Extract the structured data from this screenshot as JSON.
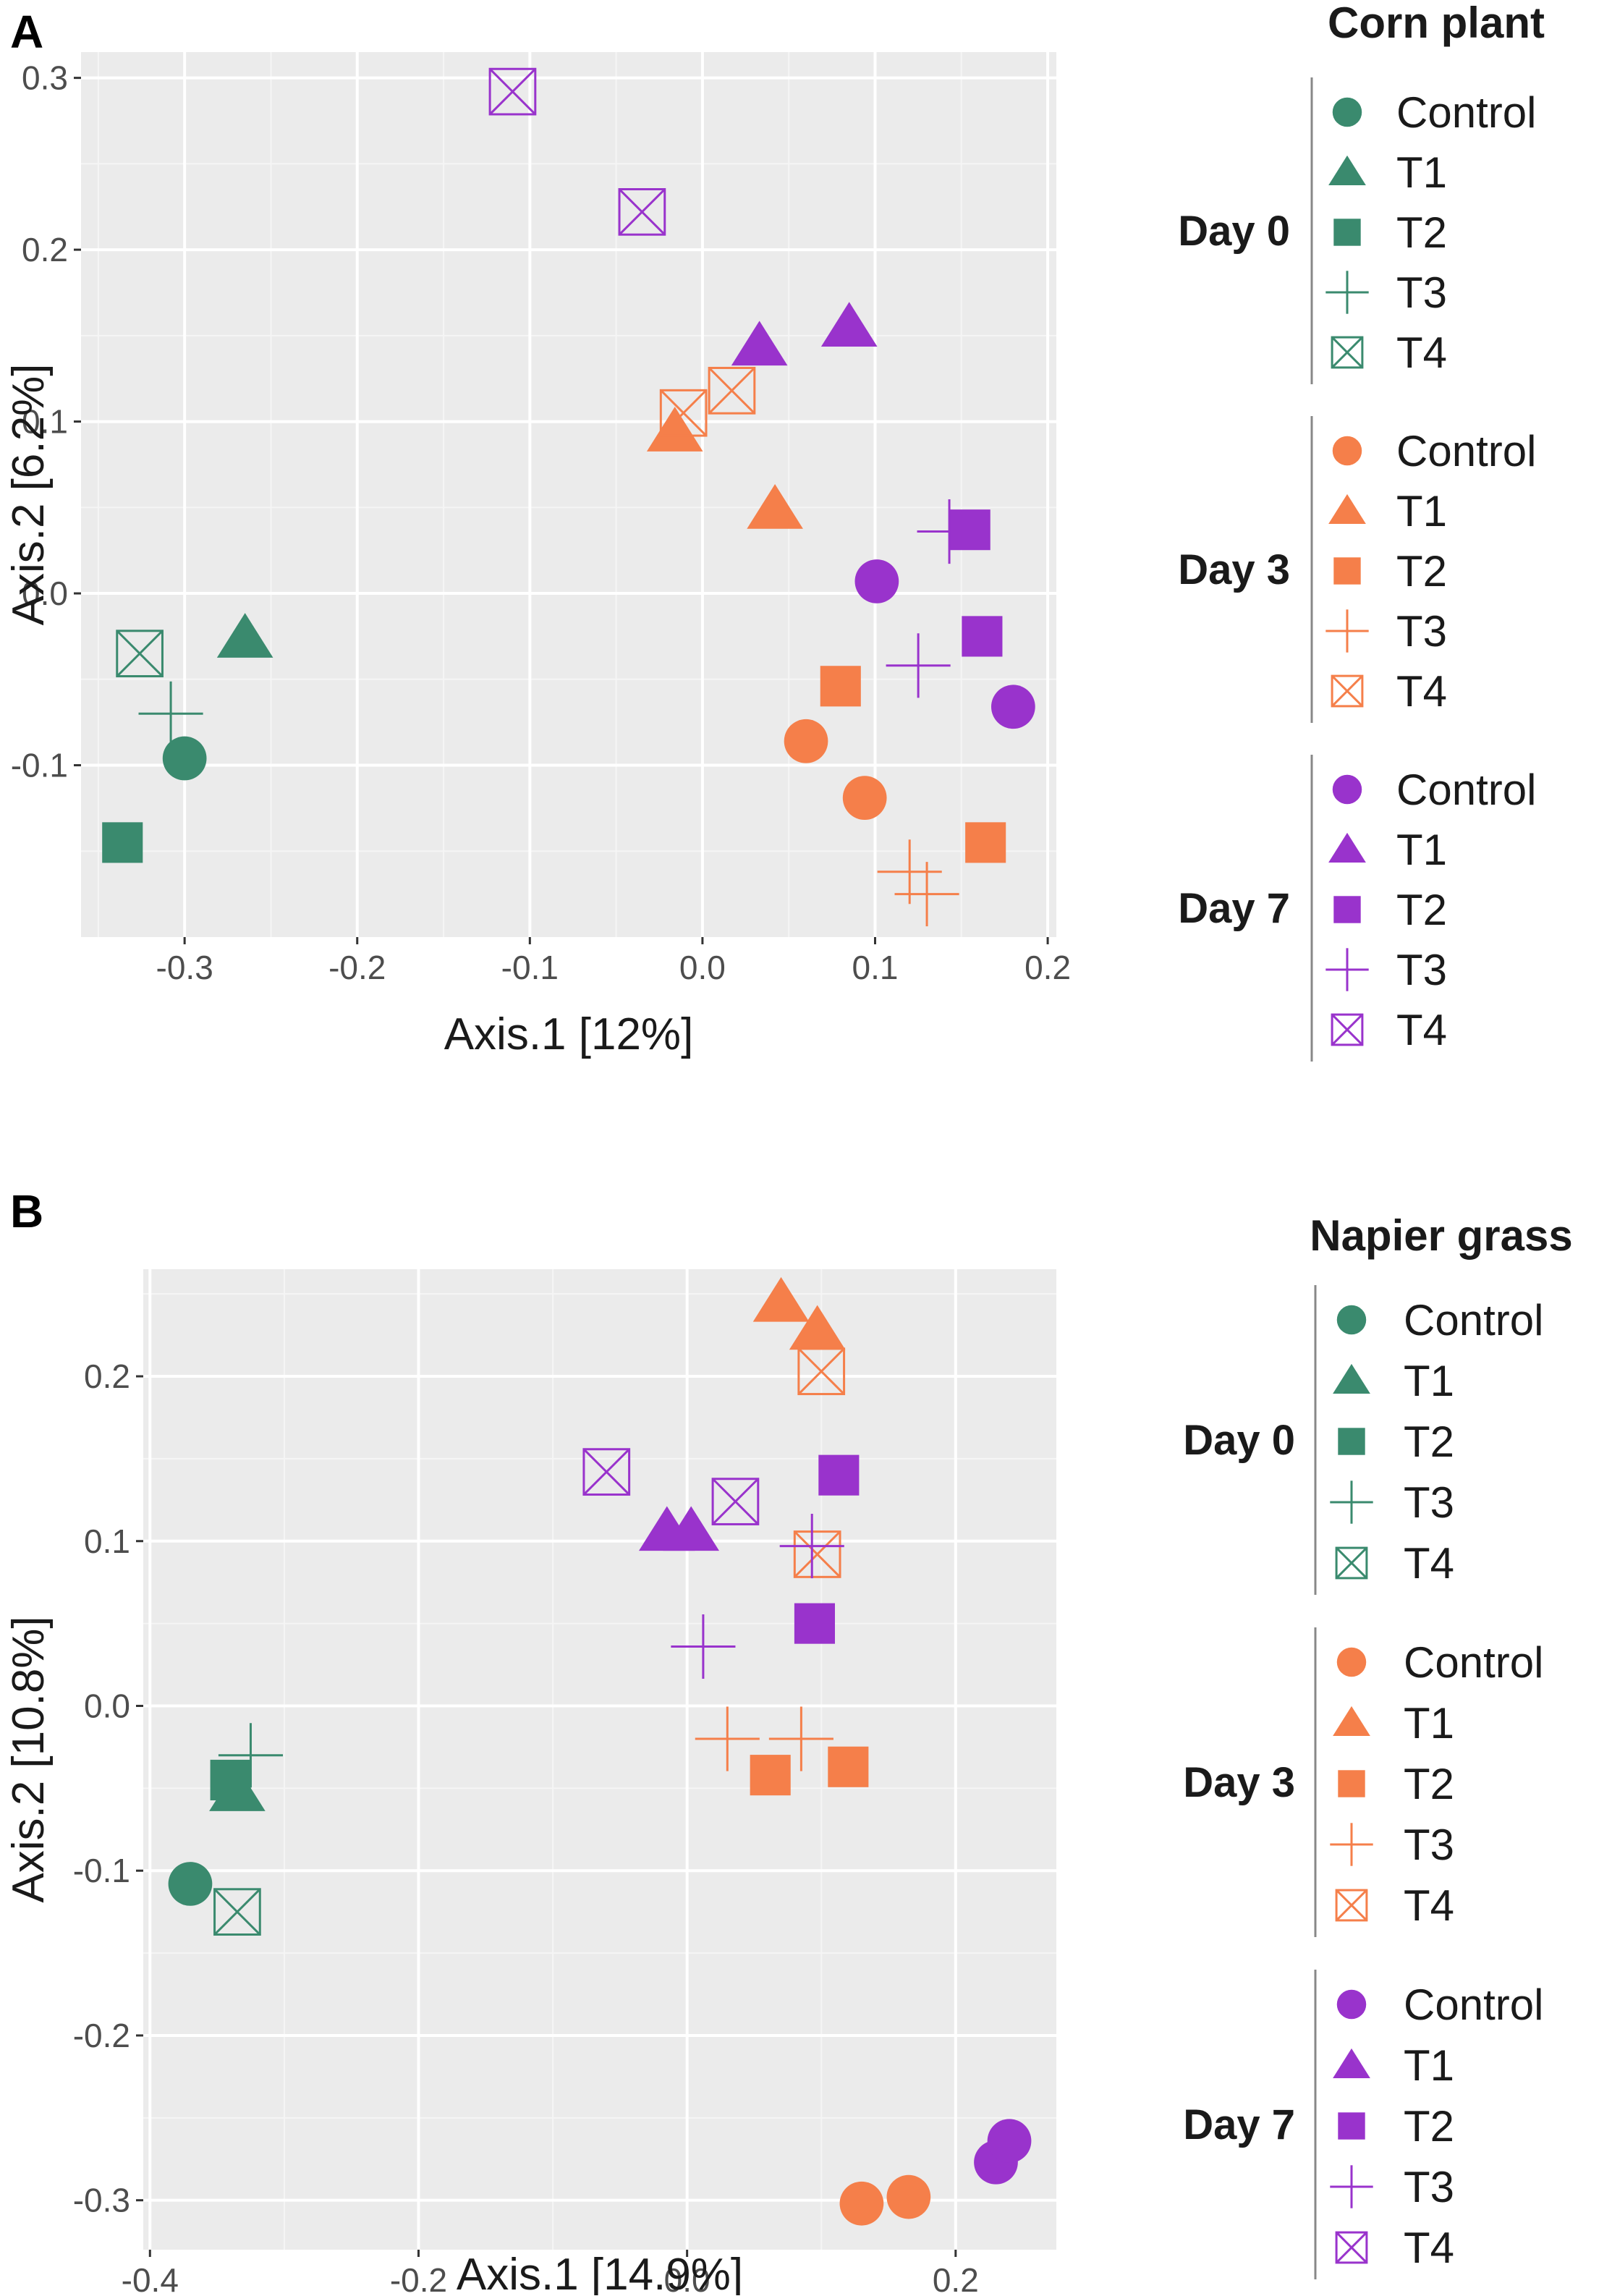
{
  "colors": {
    "Day 0": "#3a8a6e",
    "Day 3": "#f57f4a",
    "Day 7": "#9933cc",
    "panel_bg": "#ebebeb",
    "grid": "#ffffff"
  },
  "chart_data": [
    {
      "type": "scatter",
      "panel": "A",
      "legend_title": "Corn plant",
      "xlabel": "Axis.1   [12%]",
      "ylabel": "Axis.2   [6.2%]",
      "xlim": [
        -0.36,
        0.205
      ],
      "ylim": [
        -0.2,
        0.315
      ],
      "xticks": [
        -0.3,
        -0.2,
        -0.1,
        0.0,
        0.1,
        0.2
      ],
      "xtick_labels": [
        "-0.3",
        "-0.2",
        "-0.1",
        "0.0",
        "0.1",
        "0.2"
      ],
      "yticks": [
        -0.1,
        0.0,
        0.1,
        0.2,
        0.3
      ],
      "ytick_labels": [
        "-0.1",
        "0.0",
        "0.1",
        "0.2",
        "0.3"
      ],
      "legend_groups": [
        {
          "group": "Day 0",
          "entries": [
            {
              "shape": "circle",
              "label": "Control"
            },
            {
              "shape": "triangle",
              "label": "T1"
            },
            {
              "shape": "square",
              "label": "T2"
            },
            {
              "shape": "plus",
              "label": "T3"
            },
            {
              "shape": "boxx",
              "label": "T4"
            }
          ]
        },
        {
          "group": "Day 3",
          "entries": [
            {
              "shape": "circle",
              "label": "Control"
            },
            {
              "shape": "triangle",
              "label": "T1"
            },
            {
              "shape": "square",
              "label": "T2"
            },
            {
              "shape": "plus",
              "label": "T3"
            },
            {
              "shape": "boxx",
              "label": "T4"
            }
          ]
        },
        {
          "group": "Day 7",
          "entries": [
            {
              "shape": "circle",
              "label": "Control"
            },
            {
              "shape": "triangle",
              "label": "T1"
            },
            {
              "shape": "square",
              "label": "T2"
            },
            {
              "shape": "plus",
              "label": "T3"
            },
            {
              "shape": "boxx",
              "label": "T4"
            }
          ]
        }
      ],
      "series": [
        {
          "name": "Day 0",
          "points": [
            {
              "x": -0.3,
              "y": -0.096,
              "shape": "circle"
            },
            {
              "x": -0.265,
              "y": -0.026,
              "shape": "triangle"
            },
            {
              "x": -0.336,
              "y": -0.145,
              "shape": "square"
            },
            {
              "x": -0.308,
              "y": -0.07,
              "shape": "plus"
            },
            {
              "x": -0.326,
              "y": -0.035,
              "shape": "boxx"
            }
          ]
        },
        {
          "name": "Day 3",
          "points": [
            {
              "x": 0.06,
              "y": -0.086,
              "shape": "circle"
            },
            {
              "x": 0.094,
              "y": -0.119,
              "shape": "circle"
            },
            {
              "x": -0.016,
              "y": 0.094,
              "shape": "triangle"
            },
            {
              "x": 0.042,
              "y": 0.049,
              "shape": "triangle"
            },
            {
              "x": 0.08,
              "y": -0.054,
              "shape": "square"
            },
            {
              "x": 0.164,
              "y": -0.145,
              "shape": "square"
            },
            {
              "x": 0.12,
              "y": -0.162,
              "shape": "plus"
            },
            {
              "x": 0.13,
              "y": -0.175,
              "shape": "plus"
            },
            {
              "x": -0.011,
              "y": 0.105,
              "shape": "boxx"
            },
            {
              "x": 0.017,
              "y": 0.118,
              "shape": "boxx"
            }
          ]
        },
        {
          "name": "Day 7",
          "points": [
            {
              "x": 0.101,
              "y": 0.007,
              "shape": "circle"
            },
            {
              "x": 0.18,
              "y": -0.066,
              "shape": "circle"
            },
            {
              "x": 0.033,
              "y": 0.144,
              "shape": "triangle"
            },
            {
              "x": 0.085,
              "y": 0.155,
              "shape": "triangle"
            },
            {
              "x": 0.155,
              "y": 0.037,
              "shape": "square"
            },
            {
              "x": 0.162,
              "y": -0.025,
              "shape": "square"
            },
            {
              "x": 0.143,
              "y": 0.036,
              "shape": "plus"
            },
            {
              "x": 0.125,
              "y": -0.042,
              "shape": "plus"
            },
            {
              "x": -0.11,
              "y": 0.292,
              "shape": "boxx"
            },
            {
              "x": -0.035,
              "y": 0.222,
              "shape": "boxx"
            }
          ]
        }
      ]
    },
    {
      "type": "scatter",
      "panel": "B",
      "legend_title": "Napier grass",
      "xlabel": "Axis.1   [14.9%]",
      "ylabel": "Axis.2   [10.8%]",
      "xlim": [
        -0.405,
        0.275
      ],
      "ylim": [
        -0.33,
        0.265
      ],
      "xticks": [
        -0.4,
        -0.2,
        0.0,
        0.2
      ],
      "xtick_labels": [
        "-0.4",
        "-0.2",
        "0.0",
        "0.2"
      ],
      "yticks": [
        -0.3,
        -0.2,
        -0.1,
        0.0,
        0.1,
        0.2
      ],
      "ytick_labels": [
        "-0.3",
        "-0.2",
        "-0.1",
        "0.0",
        "0.1",
        "0.2"
      ],
      "legend_groups": [
        {
          "group": "Day 0",
          "entries": [
            {
              "shape": "circle",
              "label": "Control"
            },
            {
              "shape": "triangle",
              "label": "T1"
            },
            {
              "shape": "square",
              "label": "T2"
            },
            {
              "shape": "plus",
              "label": "T3"
            },
            {
              "shape": "boxx",
              "label": "T4"
            }
          ]
        },
        {
          "group": "Day 3",
          "entries": [
            {
              "shape": "circle",
              "label": "Control"
            },
            {
              "shape": "triangle",
              "label": "T1"
            },
            {
              "shape": "square",
              "label": "T2"
            },
            {
              "shape": "plus",
              "label": "T3"
            },
            {
              "shape": "boxx",
              "label": "T4"
            }
          ]
        },
        {
          "group": "Day 7",
          "entries": [
            {
              "shape": "circle",
              "label": "Control"
            },
            {
              "shape": "triangle",
              "label": "T1"
            },
            {
              "shape": "square",
              "label": "T2"
            },
            {
              "shape": "plus",
              "label": "T3"
            },
            {
              "shape": "boxx",
              "label": "T4"
            }
          ]
        }
      ],
      "series": [
        {
          "name": "Day 0",
          "points": [
            {
              "x": -0.37,
              "y": -0.108,
              "shape": "circle"
            },
            {
              "x": -0.335,
              "y": -0.052,
              "shape": "triangle"
            },
            {
              "x": -0.34,
              "y": -0.045,
              "shape": "square"
            },
            {
              "x": -0.325,
              "y": -0.03,
              "shape": "plus"
            },
            {
              "x": -0.335,
              "y": -0.125,
              "shape": "boxx"
            }
          ]
        },
        {
          "name": "Day 3",
          "points": [
            {
              "x": 0.13,
              "y": -0.302,
              "shape": "circle"
            },
            {
              "x": 0.165,
              "y": -0.298,
              "shape": "circle"
            },
            {
              "x": 0.07,
              "y": 0.245,
              "shape": "triangle"
            },
            {
              "x": 0.097,
              "y": 0.228,
              "shape": "triangle"
            },
            {
              "x": 0.062,
              "y": -0.042,
              "shape": "square"
            },
            {
              "x": 0.12,
              "y": -0.037,
              "shape": "square"
            },
            {
              "x": 0.03,
              "y": -0.02,
              "shape": "plus"
            },
            {
              "x": 0.085,
              "y": -0.02,
              "shape": "plus"
            },
            {
              "x": 0.1,
              "y": 0.203,
              "shape": "boxx"
            },
            {
              "x": 0.097,
              "y": 0.092,
              "shape": "boxx"
            }
          ]
        },
        {
          "name": "Day 7",
          "points": [
            {
              "x": 0.23,
              "y": -0.277,
              "shape": "circle"
            },
            {
              "x": 0.24,
              "y": -0.264,
              "shape": "circle"
            },
            {
              "x": -0.015,
              "y": 0.106,
              "shape": "triangle"
            },
            {
              "x": 0.003,
              "y": 0.106,
              "shape": "triangle"
            },
            {
              "x": 0.113,
              "y": 0.14,
              "shape": "square"
            },
            {
              "x": 0.095,
              "y": 0.05,
              "shape": "square"
            },
            {
              "x": 0.012,
              "y": 0.036,
              "shape": "plus"
            },
            {
              "x": 0.093,
              "y": 0.097,
              "shape": "plus"
            },
            {
              "x": -0.06,
              "y": 0.142,
              "shape": "boxx"
            },
            {
              "x": 0.036,
              "y": 0.124,
              "shape": "boxx"
            }
          ]
        }
      ]
    }
  ],
  "panels": [
    {
      "letter": "A"
    },
    {
      "letter": "B"
    }
  ]
}
